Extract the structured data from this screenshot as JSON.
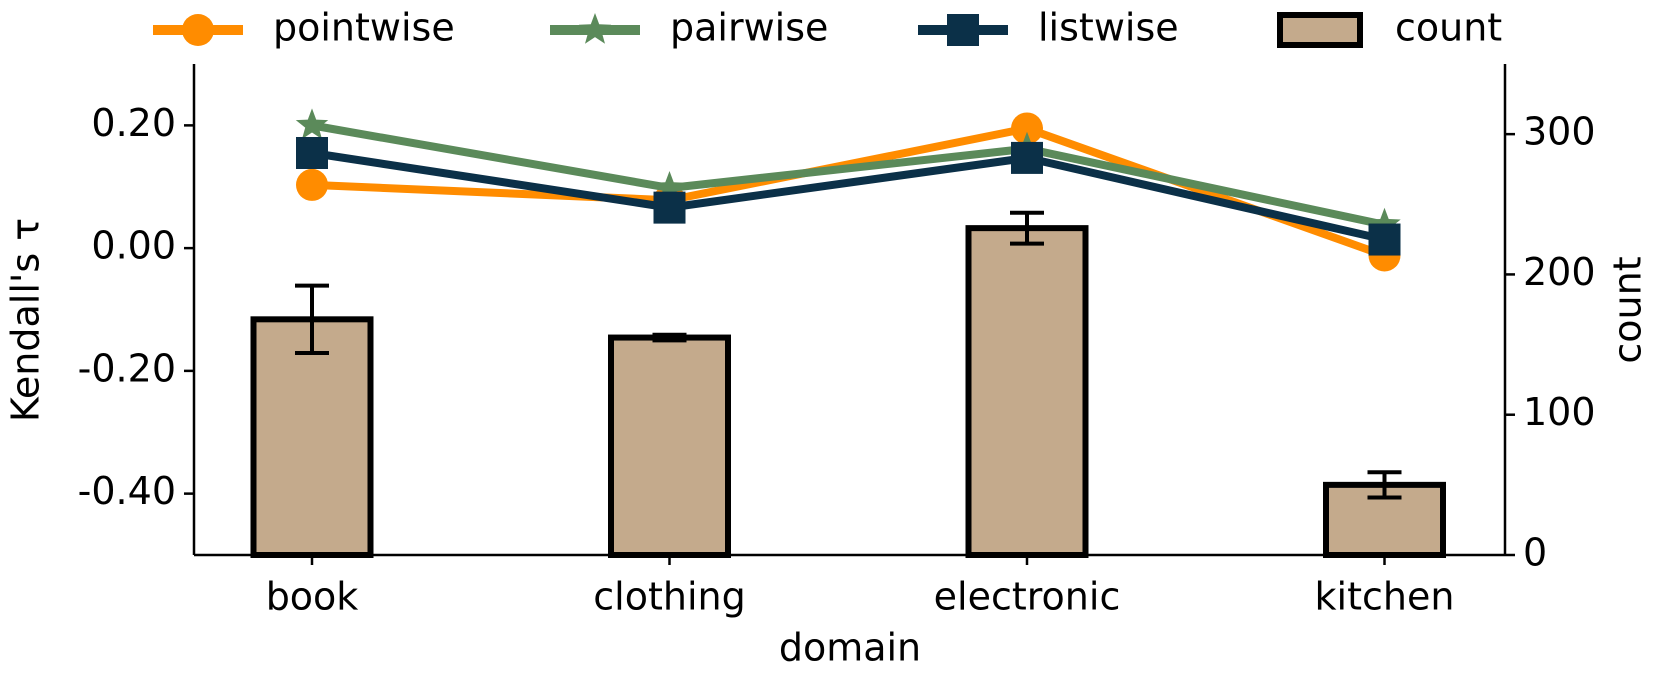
{
  "chart_data": {
    "type": "combo",
    "x_label": "domain",
    "y_label": "Kendall's τ",
    "y2_label": "count",
    "categories": [
      "book",
      "clothing",
      "electronic",
      "kitchen"
    ],
    "ylim": [
      -0.5,
      0.3
    ],
    "yticks": [
      {
        "value": -0.4,
        "label": "-0.40"
      },
      {
        "value": -0.2,
        "label": "-0.20"
      },
      {
        "value": 0,
        "label": "0.00"
      },
      {
        "value": 0.2,
        "label": "0.20"
      }
    ],
    "y2lim": [
      0,
      350
    ],
    "y2ticks": [
      0,
      100,
      200,
      300
    ],
    "legend": "top",
    "series": [
      {
        "name": "pointwise",
        "type": "line",
        "marker": "circle",
        "color": "#ff8c00",
        "values": [
          0.103,
          0.078,
          0.195,
          -0.012
        ]
      },
      {
        "name": "pairwise",
        "type": "line",
        "marker": "star",
        "color": "#5b8a5a",
        "values": [
          0.2,
          0.098,
          0.162,
          0.038
        ]
      },
      {
        "name": "listwise",
        "type": "line",
        "marker": "square",
        "color": "#0b3048",
        "values": [
          0.155,
          0.066,
          0.147,
          0.014
        ]
      },
      {
        "name": "count",
        "type": "bar",
        "axis": "y2",
        "color": "#c4aa8c",
        "edgecolor": "#000000",
        "values": [
          168,
          155,
          233,
          50
        ],
        "errors": [
          24,
          2,
          11,
          9
        ]
      }
    ]
  }
}
